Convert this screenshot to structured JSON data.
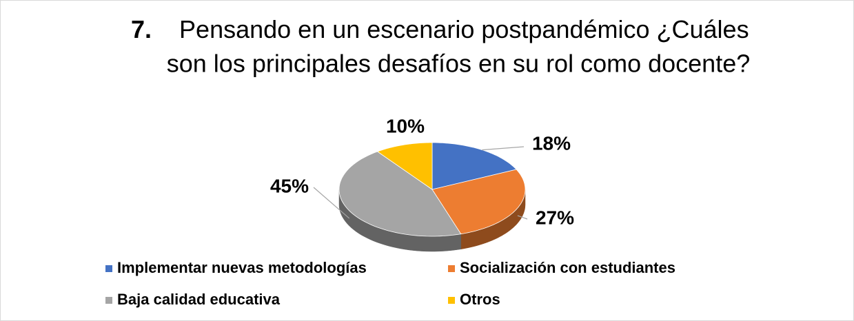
{
  "chart_data": {
    "type": "pie3d",
    "title_number": "7.",
    "title_lines": [
      "Pensando en un escenario postpandémico ¿Cuáles",
      "son los principales desafíos en su rol como docente?"
    ],
    "categories": [
      "Implementar nuevas metodologías",
      "Socialización con estudiantes",
      "Baja calidad educativa",
      "Otros"
    ],
    "values": [
      18,
      27,
      45,
      10
    ],
    "value_labels": [
      "18%",
      "27%",
      "45%",
      "10%"
    ],
    "colors": [
      "#4472c4",
      "#ed7d31",
      "#a5a5a5",
      "#ffc000"
    ]
  }
}
